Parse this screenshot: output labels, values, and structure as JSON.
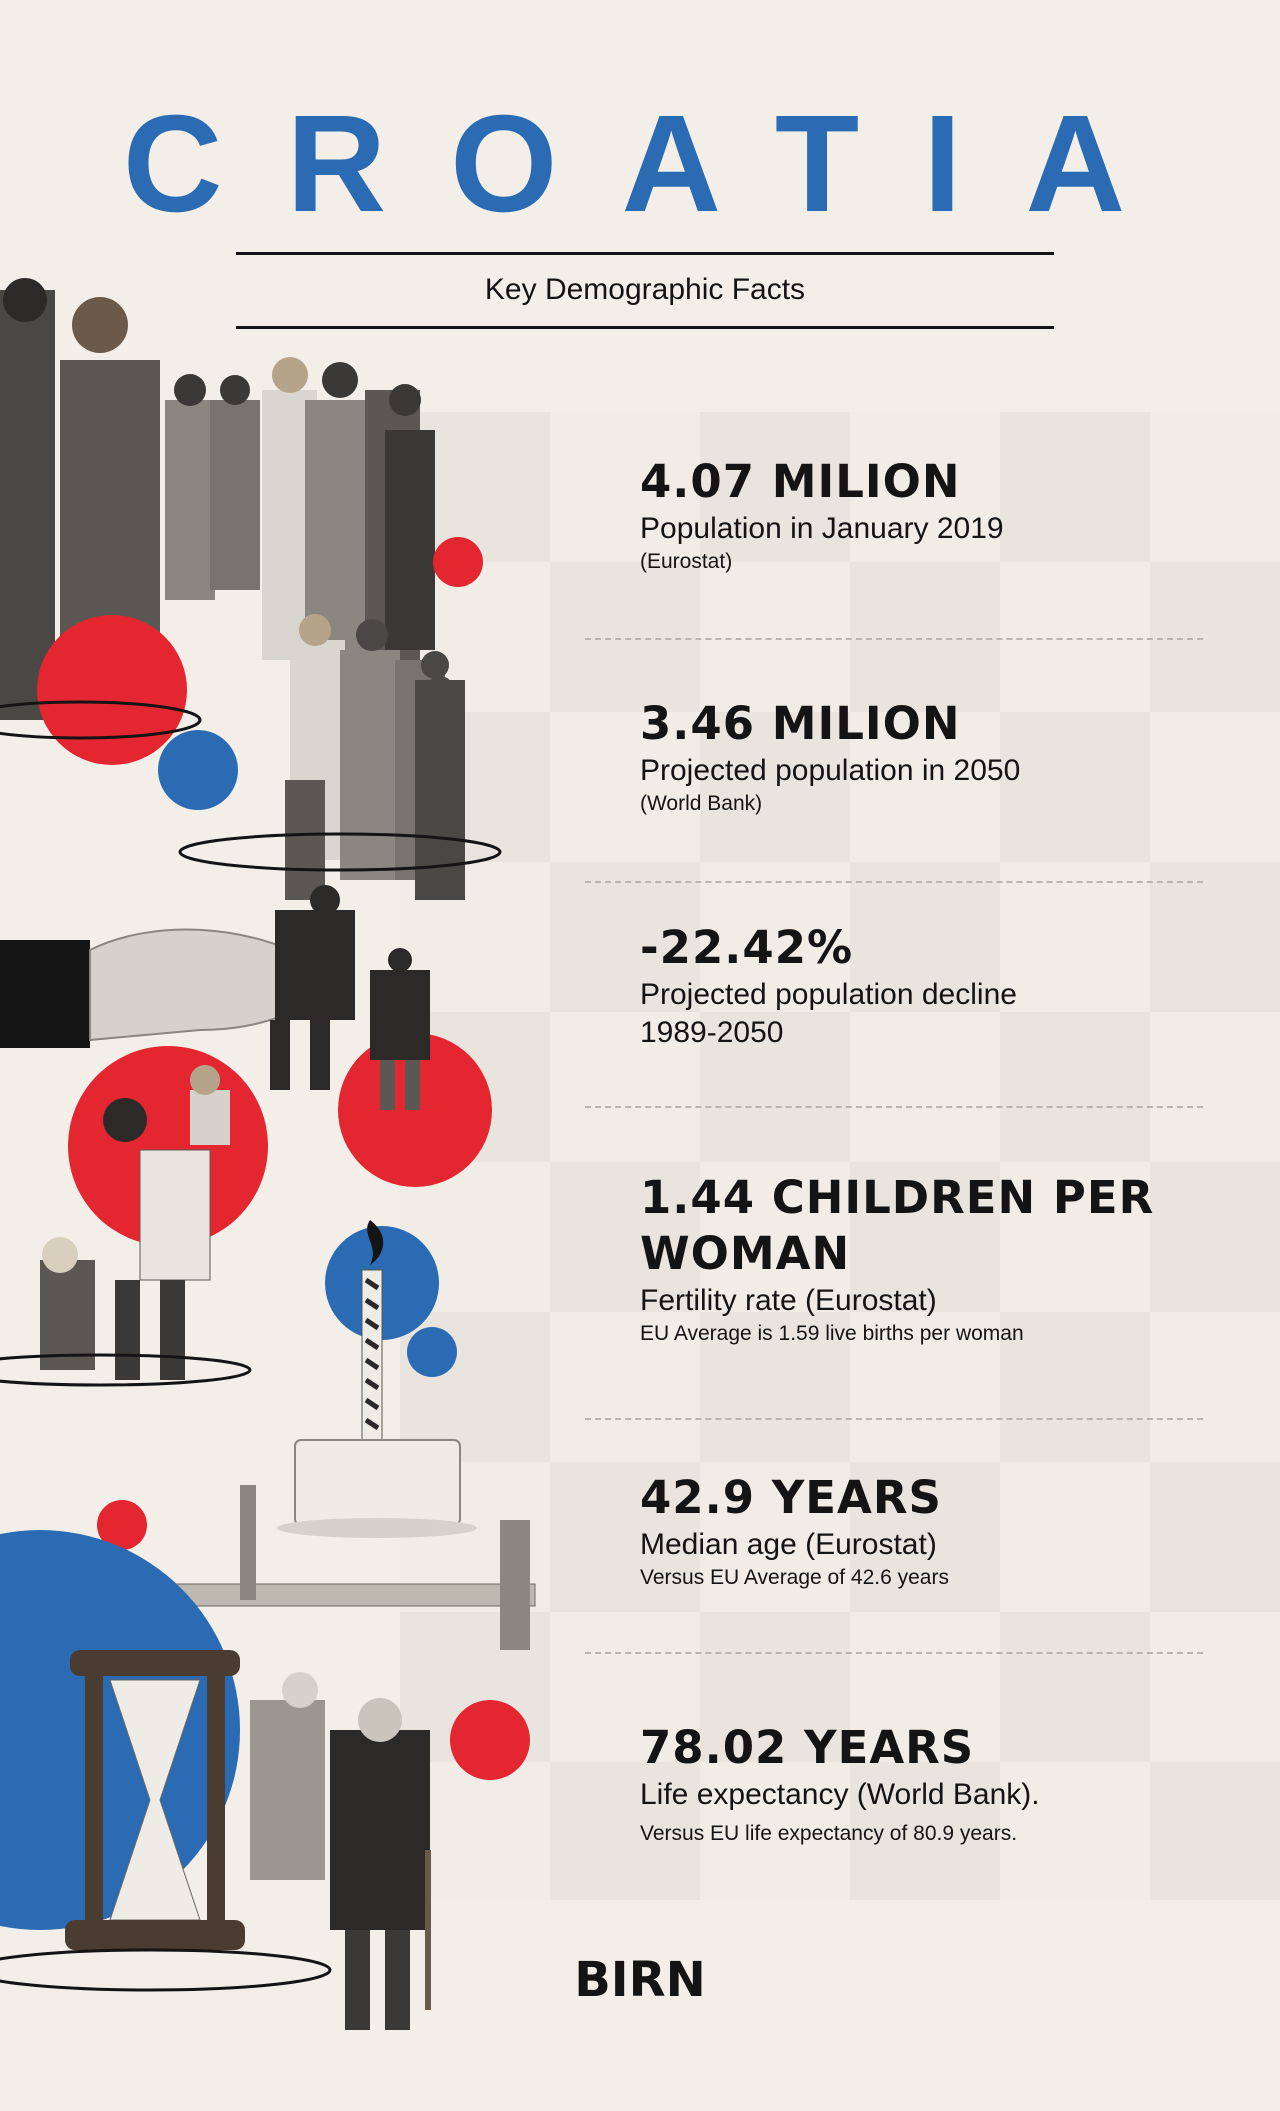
{
  "header": {
    "title": "CROATIA",
    "subtitle": "Key Demographic Facts"
  },
  "facts": [
    {
      "headline": "4.07 MILION",
      "label": "Population in January 2019",
      "note": "(Eurostat)"
    },
    {
      "headline": "3.46 MILION",
      "label": "Projected population in 2050",
      "note": "(World Bank)"
    },
    {
      "headline": "-22.42%",
      "label": "Projected population decline",
      "label2": "1989-2050"
    },
    {
      "headline": "1.44 CHILDREN PER",
      "headline2": "WOMAN",
      "label": "Fertility rate (Eurostat)",
      "note": "EU Average is 1.59 live births per woman"
    },
    {
      "headline": "42.9 YEARS",
      "label": "Median age (Eurostat)",
      "note": "Versus EU Average of 42.6 years"
    },
    {
      "headline": "78.02 YEARS",
      "label": "Life expectancy (World Bank).",
      "note": "Versus EU life expectancy of 80.9 years."
    }
  ],
  "footer": {
    "logo": "BIRN"
  },
  "colors": {
    "blue": "#2a6bb3",
    "red": "#e3262f",
    "ink": "#141414",
    "paper": "#f3efe8"
  }
}
